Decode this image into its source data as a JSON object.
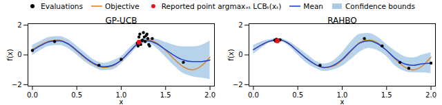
{
  "chart_data": [
    {
      "type": "line",
      "title": "GP-UCB",
      "xlabel": "x",
      "ylabel": "f(x)",
      "legend": "top",
      "xlim": [
        -0.05,
        2.05
      ],
      "ylim": [
        -2.1,
        2.1
      ],
      "xticks": [
        {
          "value": 0,
          "label": "0.0"
        },
        {
          "value": 0.5,
          "label": "0.5"
        },
        {
          "value": 1,
          "label": "1.0"
        },
        {
          "value": 1.5,
          "label": "1.5"
        },
        {
          "value": 2,
          "label": "2.0"
        }
      ],
      "yticks": [
        {
          "value": -2,
          "label": "−2"
        },
        0,
        2
      ],
      "series": [
        {
          "name": "Evaluations",
          "type": "scatter",
          "marker": "circle",
          "color": "#000000",
          "x": [
            0.0,
            0.25,
            0.75,
            1.0,
            1.2,
            1.22,
            1.25,
            1.27,
            1.3,
            1.32,
            1.18,
            1.21,
            1.24,
            1.28,
            1.31,
            1.35,
            1.19,
            1.26,
            1.29,
            1.23,
            1.7
          ],
          "values": [
            0.3,
            0.9,
            -0.7,
            -0.3,
            1.2,
            0.7,
            1.5,
            0.9,
            1.1,
            0.6,
            0.8,
            1.4,
            1.0,
            1.3,
            0.7,
            1.1,
            0.6,
            1.2,
            1.4,
            0.95,
            -0.5
          ]
        },
        {
          "name": "Objective",
          "type": "line",
          "color": "#d9822b",
          "x": [
            0,
            0.1,
            0.2,
            0.3,
            0.4,
            0.5,
            0.6,
            0.7,
            0.8,
            0.9,
            1.0,
            1.1,
            1.2,
            1.3,
            1.4,
            1.5,
            1.6,
            1.7,
            1.8,
            1.9,
            2.0
          ],
          "values": [
            0.35,
            0.7,
            0.95,
            1.0,
            0.75,
            0.25,
            -0.25,
            -0.65,
            -0.85,
            -0.75,
            -0.35,
            0.25,
            0.85,
            1.0,
            0.8,
            0.3,
            -0.3,
            -0.8,
            -1.0,
            -0.75,
            -0.15
          ]
        },
        {
          "name": "Reported point argmaxₓₜ LCBₜ(xₜ)",
          "type": "scatter",
          "marker": "circle",
          "color": "#e8141c",
          "x": [
            1.2
          ],
          "values": [
            0.85
          ]
        },
        {
          "name": "Mean",
          "type": "line",
          "color": "#1f3fd1",
          "x": [
            0,
            0.1,
            0.2,
            0.3,
            0.4,
            0.5,
            0.6,
            0.7,
            0.8,
            0.9,
            1.0,
            1.1,
            1.2,
            1.3,
            1.4,
            1.5,
            1.6,
            1.7,
            1.8,
            1.9,
            2.0
          ],
          "values": [
            0.3,
            0.65,
            0.9,
            0.95,
            0.75,
            0.3,
            -0.2,
            -0.6,
            -0.8,
            -0.7,
            -0.35,
            0.25,
            0.8,
            0.95,
            0.75,
            0.35,
            -0.05,
            -0.35,
            -0.45,
            -0.45,
            -0.35
          ]
        },
        {
          "name": "Confidence bounds",
          "type": "area",
          "color": "#a9cbe8",
          "x": [
            0,
            0.1,
            0.2,
            0.3,
            0.4,
            0.5,
            0.6,
            0.7,
            0.8,
            0.9,
            1.0,
            1.1,
            1.2,
            1.3,
            1.4,
            1.5,
            1.6,
            1.7,
            1.8,
            1.9,
            2.0
          ],
          "lower": [
            -0.05,
            0.35,
            0.6,
            0.65,
            0.45,
            0.0,
            -0.5,
            -0.85,
            -1.05,
            -1.0,
            -0.6,
            0.0,
            0.65,
            0.8,
            0.45,
            -0.15,
            -0.75,
            -1.25,
            -1.45,
            -1.55,
            -1.65
          ],
          "upper": [
            0.65,
            0.95,
            1.2,
            1.25,
            1.05,
            0.6,
            0.1,
            -0.35,
            -0.55,
            -0.4,
            -0.1,
            0.5,
            0.95,
            1.1,
            1.05,
            0.85,
            0.65,
            0.55,
            0.55,
            0.65,
            0.95
          ]
        }
      ]
    },
    {
      "type": "line",
      "title": "RAHBO",
      "xlabel": "x",
      "ylabel": "f(x)",
      "legend": "top",
      "xlim": [
        -0.05,
        2.05
      ],
      "ylim": [
        -2.1,
        2.1
      ],
      "xticks": [
        {
          "value": 0,
          "label": "0.0"
        },
        {
          "value": 0.5,
          "label": "0.5"
        },
        {
          "value": 1,
          "label": "1.0"
        },
        {
          "value": 1.5,
          "label": "1.5"
        },
        {
          "value": 2,
          "label": "2.0"
        }
      ],
      "yticks": [
        {
          "value": -2,
          "label": "−2"
        },
        0,
        2
      ],
      "series": [
        {
          "name": "Evaluations",
          "type": "scatter",
          "marker": "circle",
          "color": "#000000",
          "x": [
            0.24,
            0.26,
            0.27,
            0.28,
            0.29,
            0.25,
            0.3,
            0.75,
            1.25,
            1.45,
            1.65,
            1.75,
            2.0
          ],
          "values": [
            1.0,
            1.05,
            0.95,
            1.0,
            0.98,
            0.92,
            1.02,
            -0.7,
            1.1,
            0.6,
            -0.5,
            -0.9,
            -0.55
          ]
        },
        {
          "name": "Objective",
          "type": "line",
          "color": "#d9822b",
          "x": [
            0,
            0.1,
            0.2,
            0.3,
            0.4,
            0.5,
            0.6,
            0.7,
            0.8,
            0.9,
            1.0,
            1.1,
            1.2,
            1.3,
            1.4,
            1.5,
            1.6,
            1.7,
            1.8,
            1.9,
            2.0
          ],
          "values": [
            0.35,
            0.7,
            0.95,
            1.0,
            0.75,
            0.25,
            -0.25,
            -0.65,
            -0.85,
            -0.75,
            -0.35,
            0.25,
            0.85,
            1.0,
            0.8,
            0.3,
            -0.3,
            -0.8,
            -1.0,
            -0.75,
            -0.15
          ]
        },
        {
          "name": "Reported point argmaxₓₜ LCBₜ(xₜ)",
          "type": "scatter",
          "marker": "circle",
          "color": "#e8141c",
          "x": [
            0.27
          ],
          "values": [
            0.95
          ]
        },
        {
          "name": "Mean",
          "type": "line",
          "color": "#1f3fd1",
          "x": [
            0,
            0.1,
            0.2,
            0.3,
            0.4,
            0.5,
            0.6,
            0.7,
            0.8,
            0.9,
            1.0,
            1.1,
            1.2,
            1.3,
            1.4,
            1.5,
            1.6,
            1.7,
            1.8,
            1.9,
            2.0
          ],
          "values": [
            0.35,
            0.7,
            0.95,
            1.0,
            0.75,
            0.25,
            -0.25,
            -0.65,
            -0.85,
            -0.7,
            -0.3,
            0.3,
            0.8,
            0.95,
            0.75,
            0.3,
            -0.25,
            -0.6,
            -0.7,
            -0.6,
            -0.55
          ]
        },
        {
          "name": "Confidence bounds",
          "type": "area",
          "color": "#a9cbe8",
          "x": [
            0,
            0.1,
            0.2,
            0.3,
            0.4,
            0.5,
            0.6,
            0.7,
            0.8,
            0.9,
            1.0,
            1.1,
            1.2,
            1.3,
            1.4,
            1.5,
            1.6,
            1.7,
            1.8,
            1.9,
            2.0
          ],
          "lower": [
            0.05,
            0.5,
            0.85,
            0.9,
            0.6,
            0.0,
            -0.55,
            -0.9,
            -1.1,
            -1.0,
            -0.75,
            -0.3,
            0.2,
            0.45,
            0.3,
            -0.1,
            -0.75,
            -1.1,
            -1.2,
            -1.2,
            -1.25
          ],
          "upper": [
            0.65,
            0.9,
            1.05,
            1.1,
            0.9,
            0.5,
            0.05,
            -0.4,
            -0.6,
            -0.4,
            0.15,
            0.9,
            1.4,
            1.45,
            1.2,
            0.7,
            0.25,
            -0.1,
            -0.2,
            0.0,
            0.15
          ]
        }
      ]
    }
  ]
}
